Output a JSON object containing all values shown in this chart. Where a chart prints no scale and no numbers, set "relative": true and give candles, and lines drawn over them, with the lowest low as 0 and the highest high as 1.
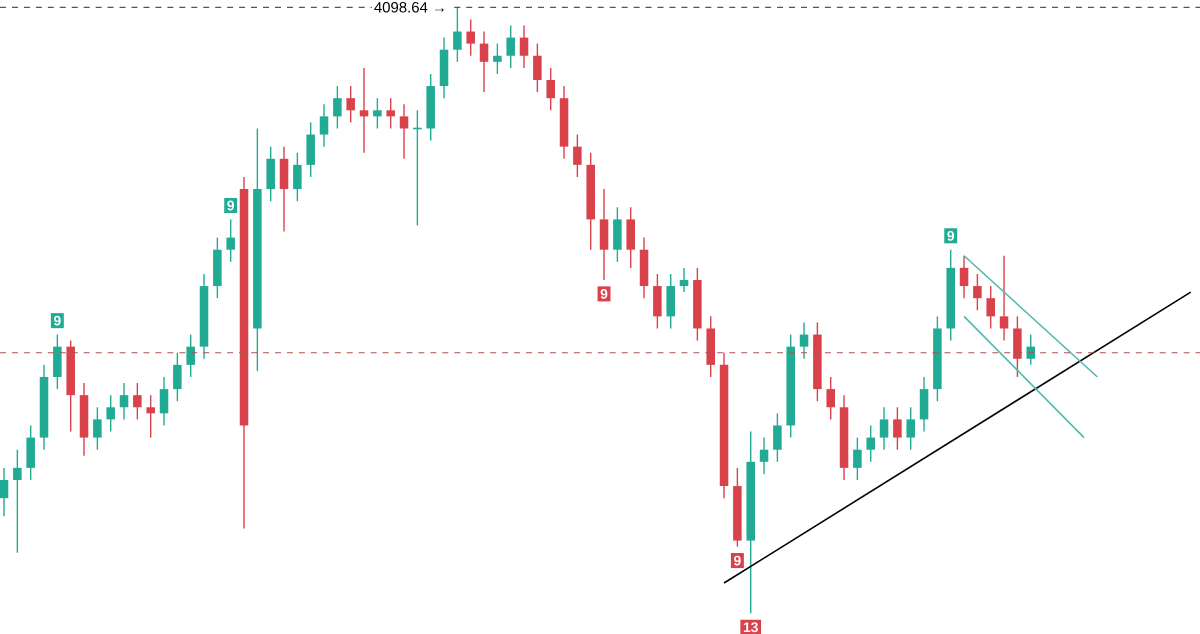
{
  "chart_data": {
    "type": "candlestick",
    "relative": true,
    "categories": [
      null,
      null,
      null,
      null,
      null,
      null,
      null,
      null,
      null,
      null,
      null,
      null,
      null,
      null,
      null,
      null,
      null,
      null,
      null,
      null,
      null,
      null,
      null,
      null,
      null,
      null,
      null,
      null,
      null,
      null,
      null,
      null,
      null,
      null,
      null,
      null,
      null,
      null,
      null,
      null,
      null,
      null,
      null,
      null,
      null,
      null,
      null,
      null,
      null,
      null,
      null,
      null,
      null,
      null,
      null,
      null,
      null,
      null,
      null,
      null,
      null,
      null,
      null,
      null,
      null,
      null,
      null,
      null,
      null,
      null,
      null,
      null,
      null,
      null,
      null,
      null,
      null,
      null,
      null,
      null,
      null,
      null,
      null,
      null,
      null,
      null,
      null,
      null,
      null,
      null
    ],
    "series": [
      {
        "ohlc": [
          [
            0.19,
            0.24,
            0.16,
            0.22
          ],
          [
            0.22,
            0.27,
            0.1,
            0.24
          ],
          [
            0.24,
            0.31,
            0.22,
            0.29
          ],
          [
            0.29,
            0.41,
            0.27,
            0.39
          ],
          [
            0.39,
            0.46,
            0.37,
            0.44
          ],
          [
            0.44,
            0.45,
            0.3,
            0.36
          ],
          [
            0.36,
            0.38,
            0.26,
            0.29
          ],
          [
            0.29,
            0.34,
            0.27,
            0.32
          ],
          [
            0.32,
            0.36,
            0.3,
            0.34
          ],
          [
            0.34,
            0.38,
            0.32,
            0.36
          ],
          [
            0.36,
            0.38,
            0.32,
            0.34
          ],
          [
            0.34,
            0.36,
            0.29,
            0.33
          ],
          [
            0.33,
            0.39,
            0.31,
            0.37
          ],
          [
            0.37,
            0.43,
            0.35,
            0.41
          ],
          [
            0.41,
            0.46,
            0.39,
            0.44
          ],
          [
            0.44,
            0.56,
            0.42,
            0.54
          ],
          [
            0.54,
            0.62,
            0.52,
            0.6
          ],
          [
            0.6,
            0.65,
            0.58,
            0.62
          ],
          [
            0.7,
            0.72,
            0.14,
            0.31
          ],
          [
            0.47,
            0.8,
            0.4,
            0.7
          ],
          [
            0.7,
            0.77,
            0.68,
            0.75
          ],
          [
            0.75,
            0.77,
            0.63,
            0.7
          ],
          [
            0.7,
            0.76,
            0.68,
            0.74
          ],
          [
            0.74,
            0.81,
            0.72,
            0.79
          ],
          [
            0.79,
            0.84,
            0.77,
            0.82
          ],
          [
            0.82,
            0.87,
            0.8,
            0.85
          ],
          [
            0.85,
            0.87,
            0.81,
            0.83
          ],
          [
            0.83,
            0.9,
            0.76,
            0.82
          ],
          [
            0.82,
            0.85,
            0.8,
            0.83
          ],
          [
            0.83,
            0.85,
            0.8,
            0.82
          ],
          [
            0.82,
            0.84,
            0.75,
            0.8
          ],
          [
            0.8,
            0.83,
            0.64,
            0.8
          ],
          [
            0.8,
            0.89,
            0.78,
            0.87
          ],
          [
            0.87,
            0.95,
            0.85,
            0.93
          ],
          [
            0.93,
            1.0,
            0.91,
            0.96
          ],
          [
            0.96,
            0.98,
            0.92,
            0.94
          ],
          [
            0.94,
            0.96,
            0.86,
            0.91
          ],
          [
            0.91,
            0.94,
            0.89,
            0.92
          ],
          [
            0.92,
            0.97,
            0.9,
            0.95
          ],
          [
            0.95,
            0.97,
            0.9,
            0.92
          ],
          [
            0.92,
            0.94,
            0.86,
            0.88
          ],
          [
            0.88,
            0.9,
            0.83,
            0.85
          ],
          [
            0.85,
            0.87,
            0.75,
            0.77
          ],
          [
            0.77,
            0.79,
            0.72,
            0.74
          ],
          [
            0.74,
            0.76,
            0.6,
            0.65
          ],
          [
            0.65,
            0.7,
            0.55,
            0.6
          ],
          [
            0.6,
            0.67,
            0.58,
            0.65
          ],
          [
            0.65,
            0.67,
            0.57,
            0.6
          ],
          [
            0.6,
            0.62,
            0.52,
            0.54
          ],
          [
            0.54,
            0.56,
            0.47,
            0.49
          ],
          [
            0.49,
            0.56,
            0.47,
            0.54
          ],
          [
            0.54,
            0.57,
            0.53,
            0.55
          ],
          [
            0.55,
            0.57,
            0.45,
            0.47
          ],
          [
            0.47,
            0.49,
            0.39,
            0.41
          ],
          [
            0.41,
            0.43,
            0.19,
            0.21
          ],
          [
            0.21,
            0.24,
            0.11,
            0.12
          ],
          [
            0.12,
            0.3,
            0.0,
            0.25
          ],
          [
            0.25,
            0.29,
            0.23,
            0.27
          ],
          [
            0.27,
            0.33,
            0.25,
            0.31
          ],
          [
            0.31,
            0.46,
            0.29,
            0.44
          ],
          [
            0.44,
            0.48,
            0.42,
            0.46
          ],
          [
            0.46,
            0.48,
            0.35,
            0.37
          ],
          [
            0.37,
            0.39,
            0.32,
            0.34
          ],
          [
            0.34,
            0.36,
            0.22,
            0.24
          ],
          [
            0.24,
            0.29,
            0.22,
            0.27
          ],
          [
            0.27,
            0.31,
            0.25,
            0.29
          ],
          [
            0.29,
            0.34,
            0.27,
            0.32
          ],
          [
            0.32,
            0.34,
            0.27,
            0.29
          ],
          [
            0.29,
            0.34,
            0.27,
            0.32
          ],
          [
            0.32,
            0.39,
            0.3,
            0.37
          ],
          [
            0.37,
            0.49,
            0.35,
            0.47
          ],
          [
            0.47,
            0.6,
            0.45,
            0.57
          ],
          [
            0.57,
            0.59,
            0.52,
            0.54
          ],
          [
            0.54,
            0.56,
            0.5,
            0.52
          ],
          [
            0.52,
            0.54,
            0.47,
            0.49
          ],
          [
            0.49,
            0.59,
            0.45,
            0.47
          ],
          [
            0.47,
            0.49,
            0.39,
            0.42
          ],
          [
            0.42,
            0.46,
            0.41,
            0.44
          ],
          null,
          null,
          null,
          null,
          null,
          null,
          null,
          null,
          null,
          null,
          null,
          null
        ]
      },
      {
        "type": "line",
        "values": [
          null,
          null,
          null,
          null,
          null,
          null,
          null,
          null,
          null,
          null,
          null,
          null,
          null,
          null,
          null,
          null,
          null,
          null,
          null,
          null,
          null,
          null,
          null,
          null,
          null,
          null,
          null,
          null,
          null,
          null,
          null,
          null,
          null,
          null,
          null,
          null,
          null,
          null,
          null,
          null,
          null,
          null,
          null,
          null,
          null,
          null,
          null,
          null,
          null,
          null,
          null,
          null,
          null,
          null,
          0.05,
          null,
          null,
          null,
          null,
          null,
          null,
          null,
          null,
          null,
          null,
          null,
          null,
          null,
          null,
          null,
          null,
          null,
          null,
          null,
          null,
          null,
          null,
          null,
          null,
          null,
          null,
          null,
          null,
          null,
          null,
          null,
          null,
          null,
          null,
          0.53
        ],
        "color": "#000000"
      },
      {
        "type": "line",
        "values": [
          null,
          null,
          null,
          null,
          null,
          null,
          null,
          null,
          null,
          null,
          null,
          null,
          null,
          null,
          null,
          null,
          null,
          null,
          null,
          null,
          null,
          null,
          null,
          null,
          null,
          null,
          null,
          null,
          null,
          null,
          null,
          null,
          null,
          null,
          null,
          null,
          null,
          null,
          null,
          null,
          null,
          null,
          null,
          null,
          null,
          null,
          null,
          null,
          null,
          null,
          null,
          null,
          null,
          null,
          null,
          null,
          null,
          null,
          null,
          null,
          null,
          null,
          null,
          null,
          null,
          null,
          null,
          null,
          null,
          null,
          null,
          null,
          0.59,
          null,
          null,
          null,
          null,
          null,
          null,
          null,
          null,
          null,
          0.39,
          null,
          null,
          null,
          null,
          null,
          null,
          null
        ],
        "color": "#4fb8b0"
      },
      {
        "type": "line",
        "values": [
          null,
          null,
          null,
          null,
          null,
          null,
          null,
          null,
          null,
          null,
          null,
          null,
          null,
          null,
          null,
          null,
          null,
          null,
          null,
          null,
          null,
          null,
          null,
          null,
          null,
          null,
          null,
          null,
          null,
          null,
          null,
          null,
          null,
          null,
          null,
          null,
          null,
          null,
          null,
          null,
          null,
          null,
          null,
          null,
          null,
          null,
          null,
          null,
          null,
          null,
          null,
          null,
          null,
          null,
          null,
          null,
          null,
          null,
          null,
          null,
          null,
          null,
          null,
          null,
          null,
          null,
          null,
          null,
          null,
          null,
          null,
          null,
          0.49,
          null,
          null,
          null,
          null,
          null,
          null,
          null,
          null,
          0.29,
          null,
          null,
          null,
          null,
          null,
          null,
          null,
          null
        ],
        "color": "#4fb8b0"
      }
    ],
    "ref_lines": [
      {
        "axis": "y",
        "value": 1.0,
        "color": "#555555",
        "line_style": "dashed"
      },
      {
        "axis": "y",
        "value": 0.43,
        "color": "#b05050",
        "line_style": "dashed"
      }
    ],
    "annotations": [
      "4098.64 →",
      {
        "text": "9",
        "y": 0.46
      },
      {
        "text": "9",
        "y": 0.65
      },
      {
        "text": "9",
        "y": 0.55
      },
      {
        "text": "9",
        "y": 0.11
      },
      {
        "text": "13",
        "y": 0.0
      },
      {
        "text": "9",
        "y": 0.6
      }
    ]
  }
}
